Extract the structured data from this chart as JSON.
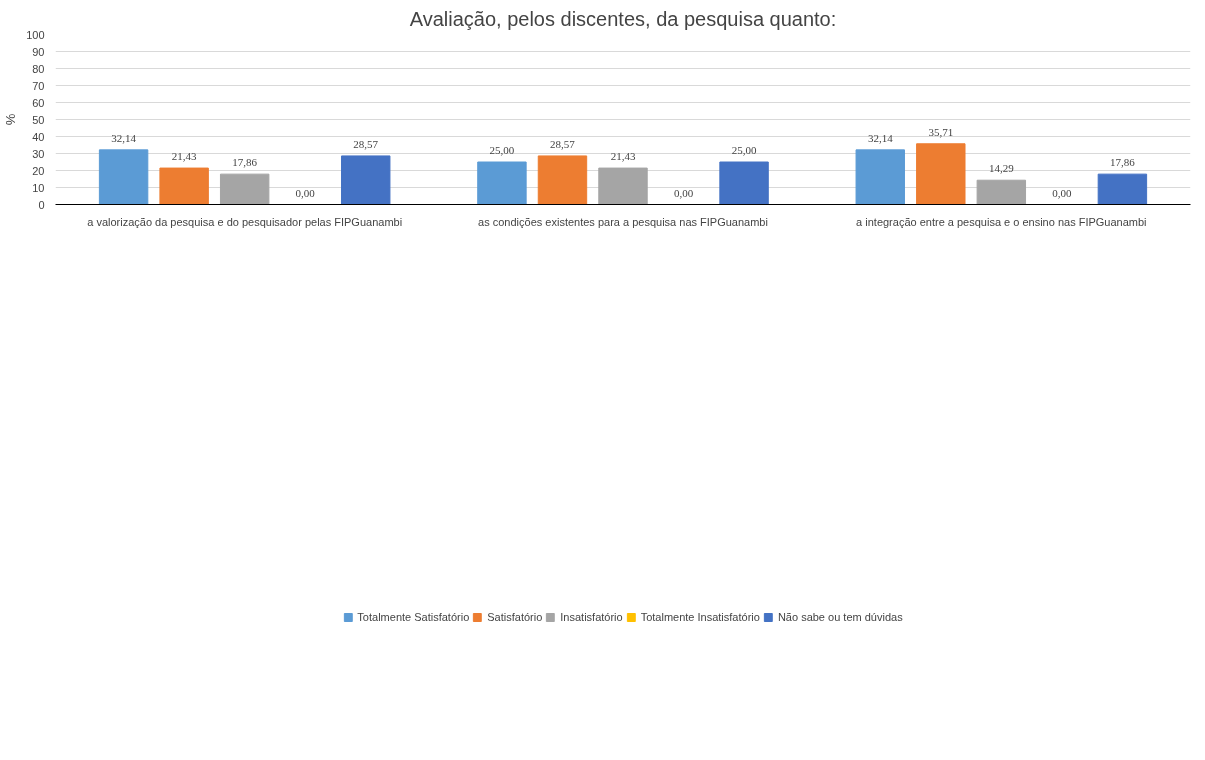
{
  "chart_data": {
    "type": "bar",
    "title": "Avaliação, pelos discentes, da pesquisa quanto:",
    "ylabel": "%",
    "categories": [
      "a valorização da pesquisa e do pesquisador pelas FIPGuanambi",
      "as condições existentes para a pesquisa nas FIPGuanambi",
      "a integração entre a pesquisa e o ensino nas FIPGuanambi"
    ],
    "series": [
      {
        "name": "Totalmente Satisfatório",
        "color": "#5b9bd5",
        "values": [
          32.14,
          25.0,
          32.14
        ],
        "value_labels": [
          "32,14",
          "25,00",
          "32,14"
        ]
      },
      {
        "name": "Satisfatório",
        "color": "#ed7d31",
        "values": [
          21.43,
          28.57,
          35.71
        ],
        "value_labels": [
          "21,43",
          "28,57",
          "35,71"
        ]
      },
      {
        "name": "Insatisfatório",
        "color": "#a5a5a5",
        "values": [
          17.86,
          21.43,
          14.29
        ],
        "value_labels": [
          "17,86",
          "21,43",
          "14,29"
        ]
      },
      {
        "name": "Totalmente Insatisfatório",
        "color": "#ffc000",
        "values": [
          0.0,
          0.0,
          0.0
        ],
        "value_labels": [
          "0,00",
          "0,00",
          "0,00"
        ]
      },
      {
        "name": "Não sabe ou tem dúvidas",
        "color": "#4472c4",
        "values": [
          28.57,
          25.0,
          17.86
        ],
        "value_labels": [
          "28,57",
          "25,00",
          "17,86"
        ]
      }
    ],
    "ylim": [
      0,
      100
    ],
    "yticks": [
      0,
      10,
      20,
      30,
      40,
      50,
      60,
      70,
      80,
      90,
      100
    ],
    "grid": "y",
    "legend": "bottom"
  }
}
